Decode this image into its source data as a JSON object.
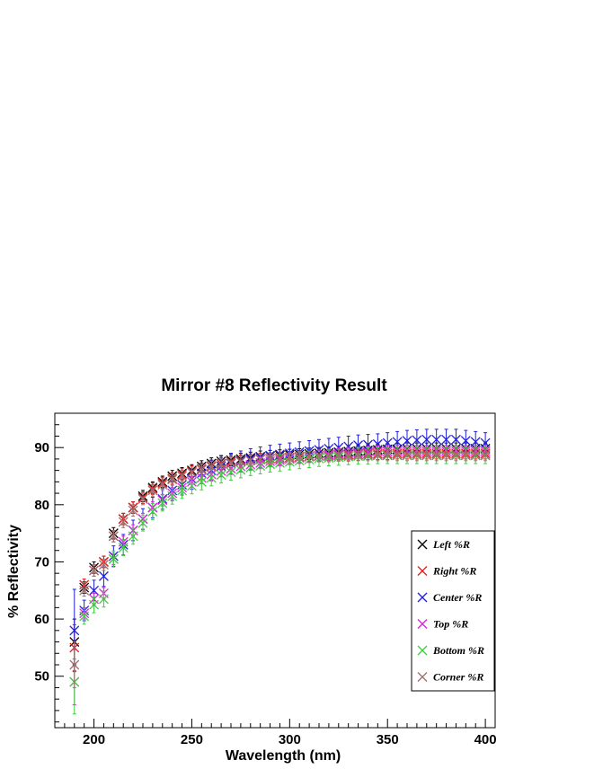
{
  "chart_data": {
    "type": "scatter",
    "title": "Mirror #8 Reflectivity Result",
    "xlabel": "Wavelength (nm)",
    "ylabel": "% Reflectivity",
    "xlim": [
      180,
      405
    ],
    "ylim": [
      41,
      96
    ],
    "x_ticks": [
      200,
      250,
      300,
      350,
      400
    ],
    "y_ticks": [
      50,
      60,
      70,
      80,
      90
    ],
    "marker": "x",
    "error_bars": true,
    "legend_position": "right",
    "x": [
      190,
      195,
      200,
      205,
      210,
      215,
      220,
      225,
      230,
      235,
      240,
      245,
      250,
      255,
      260,
      265,
      270,
      275,
      280,
      285,
      290,
      295,
      300,
      305,
      310,
      315,
      320,
      325,
      330,
      335,
      340,
      345,
      350,
      355,
      360,
      365,
      370,
      375,
      380,
      385,
      390,
      395,
      400
    ],
    "series": [
      {
        "name": "Left %R",
        "color": "#000000",
        "err": 1.0,
        "values": [
          56,
          65.5,
          69,
          70,
          75,
          77.5,
          79.5,
          81.5,
          83,
          84,
          85,
          85.5,
          86,
          86.7,
          87.2,
          87.6,
          87.8,
          88,
          88.2,
          88.4,
          88.5,
          88.6,
          88.7,
          88.8,
          88.9,
          89,
          89.1,
          89.2,
          89.3,
          89.4,
          89.5,
          89.6,
          89.7,
          89.7,
          89.8,
          89.8,
          89.8,
          89.8,
          89.8,
          89.8,
          89.8,
          89.8,
          89.8
        ]
      },
      {
        "name": "Right %R",
        "color": "#e41a1c",
        "err": 1.0,
        "values": [
          55,
          66,
          68.5,
          70,
          74.5,
          77.5,
          79.5,
          81.2,
          82.8,
          83.8,
          84.6,
          85.3,
          85.8,
          86.3,
          86.8,
          87.2,
          87.5,
          87.7,
          87.9,
          88,
          88.1,
          88.2,
          88.3,
          88.4,
          88.5,
          88.6,
          88.7,
          88.7,
          88.8,
          88.8,
          88.9,
          88.9,
          88.9,
          89,
          89,
          89,
          89,
          89,
          89,
          89,
          89,
          89,
          89
        ]
      },
      {
        "name": "Center %R",
        "color": "#1f1fe0",
        "err": 1.8,
        "values": [
          58,
          61.5,
          65,
          67.5,
          71,
          73,
          75.5,
          77.5,
          79.5,
          81,
          82.5,
          83.5,
          84.5,
          85.5,
          86,
          86.7,
          87.2,
          87.6,
          88,
          88.3,
          88.6,
          88.8,
          89,
          89.2,
          89.4,
          89.6,
          89.8,
          90,
          90.2,
          90.4,
          90.5,
          90.6,
          90.8,
          91,
          91.2,
          91.3,
          91.4,
          91.4,
          91.4,
          91.4,
          91.2,
          91,
          90.8
        ]
      },
      {
        "name": "Top %R",
        "color": "#e020e0",
        "err": 1.0,
        "values": [
          49,
          61,
          63.5,
          64.5,
          70.5,
          73.5,
          75.5,
          77.5,
          79.5,
          80.8,
          82,
          83,
          84,
          84.7,
          85.3,
          85.9,
          86.3,
          86.7,
          87,
          87.3,
          87.6,
          87.8,
          88,
          88.2,
          88.4,
          88.6,
          88.8,
          88.9,
          89,
          89.1,
          89.2,
          89.3,
          89.3,
          89.4,
          89.4,
          89.4,
          89.4,
          89.4,
          89.4,
          89.4,
          89.4,
          89.4,
          89.4
        ]
      },
      {
        "name": "Bottom %R",
        "color": "#3ecf3e",
        "err": 1.4,
        "values": [
          49,
          60.5,
          62.5,
          63.5,
          70.5,
          72.5,
          74.5,
          76.8,
          78.8,
          80.3,
          81.5,
          82.5,
          83.3,
          84,
          84.7,
          85.2,
          85.7,
          86.1,
          86.5,
          86.8,
          87.1,
          87.3,
          87.5,
          87.7,
          87.9,
          88.1,
          88.2,
          88.3,
          88.4,
          88.5,
          88.5,
          88.6,
          88.6,
          88.6,
          88.6,
          88.6,
          88.6,
          88.6,
          88.6,
          88.6,
          88.6,
          88.6,
          88.6
        ]
      },
      {
        "name": "Corner %R",
        "color": "#a07070",
        "err": 1.0,
        "values": [
          52,
          65,
          68.5,
          69.5,
          74.5,
          77,
          79,
          81,
          82.5,
          83.5,
          84.4,
          85,
          85.6,
          86.1,
          86.6,
          87,
          87.3,
          87.5,
          87.7,
          87.9,
          88,
          88.1,
          88.2,
          88.3,
          88.4,
          88.5,
          88.5,
          88.6,
          88.6,
          88.7,
          88.7,
          88.7,
          88.7,
          88.7,
          88.7,
          88.7,
          88.7,
          88.7,
          88.7,
          88.7,
          88.7,
          88.7,
          88.7
        ]
      }
    ]
  }
}
